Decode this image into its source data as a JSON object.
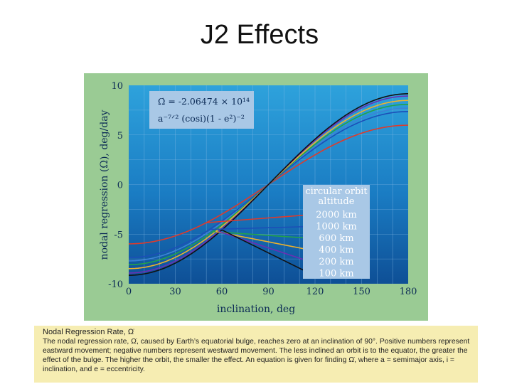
{
  "slide": {
    "title": "J2 Effects"
  },
  "chart_data": {
    "type": "line",
    "xlabel": "inclination, deg",
    "ylabel": "nodal regression (Ω), deg/day",
    "xlim": [
      0,
      180
    ],
    "ylim": [
      -10,
      10
    ],
    "xticks": [
      "0",
      "30",
      "60",
      "90",
      "120",
      "150",
      "180"
    ],
    "yticks": [
      "10",
      "5",
      "0",
      "-5",
      "-10"
    ],
    "grid": true,
    "formula": {
      "line1": "Ω̇ = -2.06474 × 10¹⁴",
      "line2": "a⁻⁷ᐟ² (cosi)(1 - e²)⁻²"
    },
    "legend": {
      "title_line1": "circular orbit",
      "title_line2": "altitude",
      "placement": "right-center"
    },
    "series": [
      {
        "name": "2000 km",
        "color": "#e03a2a",
        "amplitude": 5.98
      },
      {
        "name": "1000 km",
        "color": "#1c4fb8",
        "amplitude": 7.36
      },
      {
        "name": "600 km",
        "color": "#23a34a",
        "amplitude": 8.08
      },
      {
        "name": "400 km",
        "color": "#f0b32a",
        "amplitude": 8.48
      },
      {
        "name": "200 km",
        "color": "#6b2fb3",
        "amplitude": 8.92
      },
      {
        "name": "100 km",
        "color": "#111111",
        "amplitude": 9.15
      }
    ],
    "extra_curve": {
      "color": "#3c83d6",
      "amplitude": 7.7
    }
  },
  "caption": {
    "title": "Nodal Regression Rate, Ω̇",
    "body": "The nodal regression rate, Ω̇, caused by Earth’s equatorial bulge, reaches zero at an inclination of 90°. Positive numbers represent eastward movement; negative numbers represent westward movement. The less inclined an orbit is to the equator, the greater the effect of the bulge. The higher the orbit, the smaller the effect. An equation is given for finding Ω̇, where a = semimajor axis, i = inclination, and e = eccentricity."
  }
}
